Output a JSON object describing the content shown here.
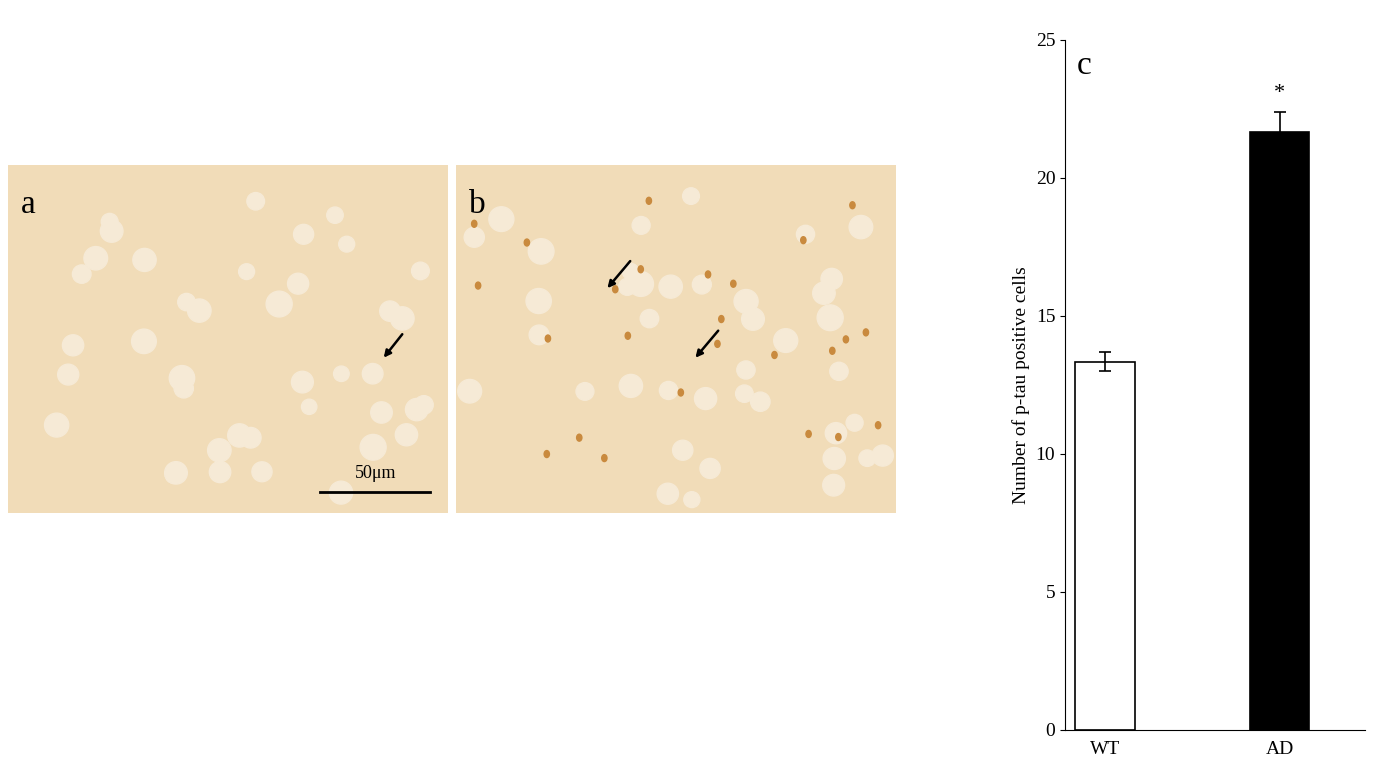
{
  "chart_data": {
    "type": "bar",
    "panel_label": "c",
    "categories": [
      "WT",
      "AD"
    ],
    "values": [
      13.35,
      21.65
    ],
    "errors": [
      0.35,
      0.75
    ],
    "colors": [
      "#ffffff",
      "#000000"
    ],
    "annotations": [
      {
        "category": "AD",
        "text": "*"
      }
    ],
    "y_label": "Number of p-tau positive cells",
    "ylim": [
      0,
      25
    ],
    "yticks": [
      0,
      5,
      10,
      15,
      20,
      25
    ],
    "grid": false
  },
  "images": [
    {
      "label": "a",
      "scale_bar": "50μm"
    },
    {
      "label": "b"
    }
  ]
}
